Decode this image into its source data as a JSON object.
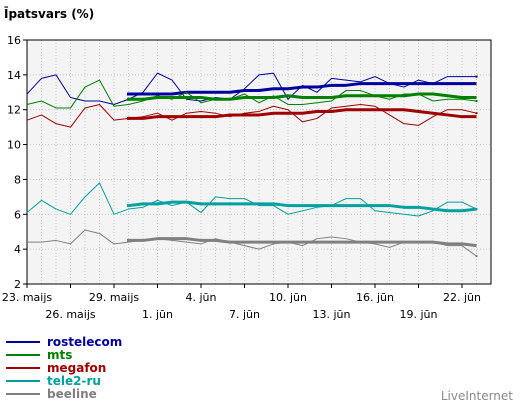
{
  "chart_data": {
    "type": "line",
    "title": "Īpatsvars (%)",
    "ylim": [
      2,
      16
    ],
    "yticks": [
      2,
      4,
      6,
      8,
      10,
      12,
      14,
      16
    ],
    "grid": true,
    "xlim": [
      0,
      32
    ],
    "xticks": [
      {
        "x": 0,
        "label": "23. maijs",
        "row": 1
      },
      {
        "x": 3,
        "label": "26. maijs",
        "row": 2
      },
      {
        "x": 6,
        "label": "29. maijs",
        "row": 1
      },
      {
        "x": 9,
        "label": "1. jūn",
        "row": 2
      },
      {
        "x": 12,
        "label": "4. jūn",
        "row": 1
      },
      {
        "x": 15,
        "label": "7. jūn",
        "row": 2
      },
      {
        "x": 18,
        "label": "10. jūn",
        "row": 1
      },
      {
        "x": 21,
        "label": "13. jūn",
        "row": 2
      },
      {
        "x": 24,
        "label": "16. jūn",
        "row": 1
      },
      {
        "x": 27,
        "label": "19. jūn",
        "row": 2
      },
      {
        "x": 30,
        "label": "22. jūn",
        "row": 1
      }
    ],
    "series": [
      {
        "name": "rostelecom",
        "color": "#0000a0",
        "daily": [
          12.9,
          13.8,
          14.0,
          12.7,
          12.5,
          12.5,
          12.3,
          12.6,
          13.0,
          14.1,
          13.7,
          12.6,
          12.5,
          12.7,
          12.6,
          13.2,
          14.0,
          14.1,
          12.6,
          13.4,
          13.0,
          13.8,
          13.7,
          13.6,
          13.9,
          13.5,
          13.3,
          13.7,
          13.5,
          13.9,
          13.9,
          13.9
        ],
        "smoothed_from": 7,
        "smoothed": [
          12.9,
          12.9,
          12.9,
          12.9,
          13.0,
          13.0,
          13.0,
          13.0,
          13.1,
          13.1,
          13.2,
          13.2,
          13.3,
          13.3,
          13.4,
          13.4,
          13.5,
          13.5,
          13.5,
          13.5,
          13.5,
          13.5,
          13.5,
          13.5,
          13.5
        ]
      },
      {
        "name": "mts",
        "color": "#008000",
        "daily": [
          12.3,
          12.5,
          12.1,
          12.1,
          13.3,
          13.7,
          12.2,
          12.3,
          12.5,
          12.8,
          12.6,
          13.0,
          12.4,
          12.6,
          12.6,
          12.9,
          12.4,
          12.8,
          12.3,
          12.3,
          12.4,
          12.5,
          13.1,
          13.1,
          12.8,
          12.6,
          12.9,
          12.9,
          12.5,
          12.6,
          12.6,
          12.5
        ],
        "smoothed_from": 7,
        "smoothed": [
          12.6,
          12.6,
          12.7,
          12.7,
          12.7,
          12.7,
          12.6,
          12.6,
          12.7,
          12.7,
          12.7,
          12.8,
          12.7,
          12.7,
          12.7,
          12.8,
          12.8,
          12.8,
          12.8,
          12.8,
          12.9,
          12.9,
          12.8,
          12.7,
          12.7
        ]
      },
      {
        "name": "megafon",
        "color": "#a00000",
        "daily": [
          11.4,
          11.7,
          11.2,
          11.0,
          12.1,
          12.3,
          11.4,
          11.5,
          11.6,
          11.8,
          11.4,
          11.8,
          11.9,
          11.8,
          11.6,
          11.8,
          11.9,
          12.2,
          12.0,
          11.3,
          11.5,
          12.1,
          12.2,
          12.3,
          12.2,
          11.7,
          11.2,
          11.1,
          11.6,
          12.0,
          12.0,
          11.8
        ],
        "smoothed_from": 7,
        "smoothed": [
          11.5,
          11.5,
          11.6,
          11.6,
          11.6,
          11.6,
          11.6,
          11.7,
          11.7,
          11.7,
          11.8,
          11.8,
          11.8,
          11.9,
          11.9,
          12.0,
          12.0,
          12.0,
          12.0,
          12.0,
          11.9,
          11.8,
          11.7,
          11.6,
          11.6
        ]
      },
      {
        "name": "tele2-ru",
        "color": "#00a0a0",
        "daily": [
          6.1,
          6.8,
          6.3,
          6.0,
          7.0,
          7.8,
          6.0,
          6.3,
          6.4,
          6.8,
          6.5,
          6.7,
          6.1,
          7.0,
          6.9,
          6.9,
          6.5,
          6.5,
          6.0,
          6.2,
          6.4,
          6.5,
          6.9,
          6.9,
          6.2,
          6.1,
          6.0,
          5.9,
          6.2,
          6.7,
          6.7,
          6.3
        ],
        "smoothed_from": 7,
        "smoothed": [
          6.5,
          6.6,
          6.6,
          6.7,
          6.7,
          6.6,
          6.6,
          6.6,
          6.6,
          6.6,
          6.6,
          6.5,
          6.5,
          6.5,
          6.5,
          6.5,
          6.5,
          6.5,
          6.5,
          6.4,
          6.4,
          6.3,
          6.2,
          6.2,
          6.3
        ]
      },
      {
        "name": "beeline",
        "color": "#808080",
        "daily": [
          4.4,
          4.4,
          4.5,
          4.3,
          5.1,
          4.9,
          4.3,
          4.4,
          4.5,
          4.6,
          4.5,
          4.4,
          4.3,
          4.6,
          4.4,
          4.2,
          4.0,
          4.3,
          4.4,
          4.2,
          4.6,
          4.7,
          4.6,
          4.4,
          4.3,
          4.1,
          4.4,
          4.4,
          4.4,
          4.2,
          4.2,
          3.6
        ],
        "smoothed_from": 7,
        "smoothed": [
          4.5,
          4.5,
          4.6,
          4.6,
          4.6,
          4.5,
          4.5,
          4.4,
          4.4,
          4.4,
          4.4,
          4.4,
          4.4,
          4.4,
          4.4,
          4.4,
          4.4,
          4.4,
          4.4,
          4.4,
          4.4,
          4.4,
          4.3,
          4.3,
          4.2
        ]
      }
    ]
  },
  "legend": {
    "items": [
      {
        "label": "rostelecom",
        "color": "#0000a0"
      },
      {
        "label": "mts",
        "color": "#008000"
      },
      {
        "label": "megafon",
        "color": "#a00000"
      },
      {
        "label": "tele2-ru",
        "color": "#00a0a0"
      },
      {
        "label": "beeline",
        "color": "#808080"
      }
    ]
  },
  "credit": "LiveInternet"
}
